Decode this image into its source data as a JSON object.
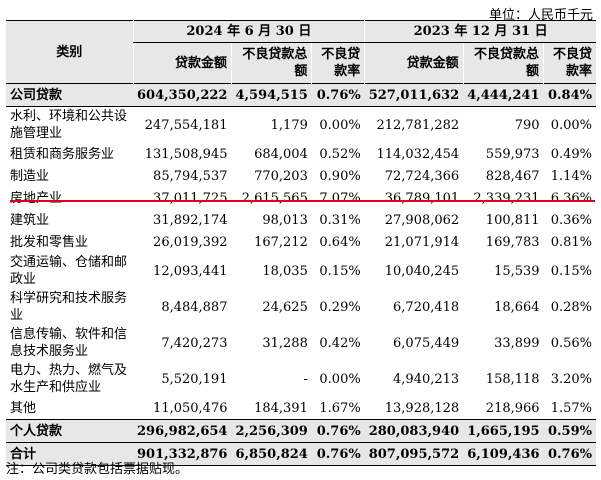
{
  "unit": "单位：人民币千元",
  "header": {
    "category": "类别",
    "period1": "2024 年 6 月 30 日",
    "period2": "2023 年 12 月 31 日",
    "cols": [
      "贷款金额",
      "不良贷款总额",
      "不良贷款率",
      "贷款金额",
      "不良贷款总额",
      "不良贷款率"
    ]
  },
  "rows": [
    {
      "name": "公司贷款",
      "values": [
        "604,350,222",
        "4,594,515",
        "0.76%",
        "527,011,632",
        "4,444,241",
        "0.84%"
      ]
    },
    {
      "name": "水利、环境和公共设施管理业",
      "values": [
        "247,554,181",
        "1,179",
        "0.00%",
        "212,781,282",
        "790",
        "0.00%"
      ]
    },
    {
      "name": "租赁和商务服务业",
      "values": [
        "131,508,945",
        "684,004",
        "0.52%",
        "114,032,454",
        "559,973",
        "0.49%"
      ]
    },
    {
      "name": "制造业",
      "values": [
        "85,794,537",
        "770,203",
        "0.90%",
        "72,724,366",
        "828,467",
        "1.14%"
      ]
    },
    {
      "name": "房地产业",
      "values": [
        "37,011,725",
        "2,615,565",
        "7.07%",
        "36,789,101",
        "2,339,231",
        "6.36%"
      ]
    },
    {
      "name": "建筑业",
      "values": [
        "31,892,174",
        "98,013",
        "0.31%",
        "27,908,062",
        "100,811",
        "0.36%"
      ]
    },
    {
      "name": "批发和零售业",
      "values": [
        "26,019,392",
        "167,212",
        "0.64%",
        "21,071,914",
        "169,783",
        "0.81%"
      ]
    },
    {
      "name": "交通运输、仓储和邮政业",
      "values": [
        "12,093,441",
        "18,035",
        "0.15%",
        "10,040,245",
        "15,539",
        "0.15%"
      ]
    },
    {
      "name": "科学研究和技术服务业",
      "values": [
        "8,484,887",
        "24,625",
        "0.29%",
        "6,720,418",
        "18,664",
        "0.28%"
      ]
    },
    {
      "name": "信息传输、软件和信息技术服务业",
      "values": [
        "7,420,273",
        "31,288",
        "0.42%",
        "6,075,449",
        "33,899",
        "0.56%"
      ]
    },
    {
      "name": "电力、热力、燃气及水生产和供应业",
      "values": [
        "5,520,191",
        "-",
        "0.00%",
        "4,940,213",
        "158,118",
        "3.20%"
      ]
    },
    {
      "name": "其他",
      "values": [
        "11,050,476",
        "184,391",
        "1.67%",
        "13,928,128",
        "218,966",
        "1.57%"
      ]
    },
    {
      "name": "个人贷款",
      "values": [
        "296,982,654",
        "2,256,309",
        "0.76%",
        "280,083,940",
        "1,665,195",
        "0.59%"
      ]
    },
    {
      "name": "合计",
      "values": [
        "901,332,876",
        "6,850,824",
        "0.76%",
        "807,095,572",
        "6,109,436",
        "0.76%"
      ]
    }
  ],
  "note": "注：公司类贷款包括票据贴现。",
  "colors": {
    "header_bg": "#e7e7e7",
    "highlight_line": "#e2001a"
  }
}
